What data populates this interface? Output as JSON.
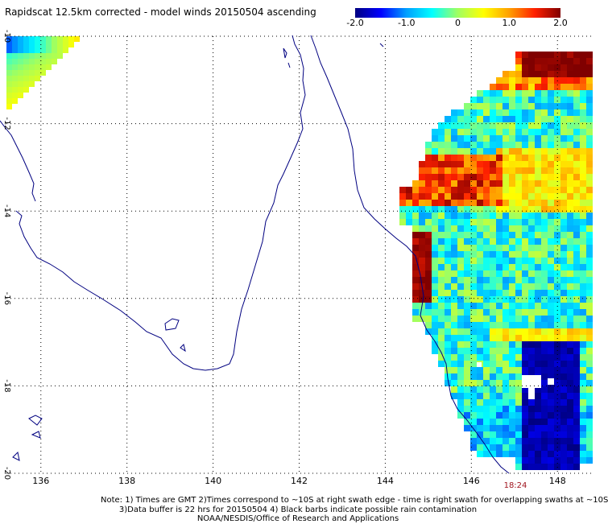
{
  "title": "Rapidscat 12.5km corrected - model winds 20150504 ascending",
  "colorbar": {
    "range": [
      -2.0,
      2.0
    ],
    "ticks": [
      "-2.0",
      "-1.0",
      "0",
      "1.0",
      "2.0"
    ],
    "colors": [
      "#000080",
      "#0000ff",
      "#00a0ff",
      "#00ffff",
      "#a0ff60",
      "#ffff00",
      "#ffa000",
      "#ff2000",
      "#800000"
    ]
  },
  "map": {
    "lon_range": [
      135.2,
      148.8
    ],
    "lat_range": [
      -20,
      -10
    ],
    "lat_ticks": [
      {
        "value": -10,
        "label": "-10"
      },
      {
        "value": -12,
        "label": "-12"
      },
      {
        "value": -14,
        "label": "-14"
      },
      {
        "value": -16,
        "label": "-16"
      },
      {
        "value": -18,
        "label": "-18"
      },
      {
        "value": -20,
        "label": "-20"
      }
    ],
    "lon_ticks": [
      {
        "value": 136,
        "label": "136"
      },
      {
        "value": 138,
        "label": "138"
      },
      {
        "value": 140,
        "label": "140"
      },
      {
        "value": 142,
        "label": "142"
      },
      {
        "value": 144,
        "label": "144"
      },
      {
        "value": 146,
        "label": "146"
      },
      {
        "value": 148,
        "label": "148"
      }
    ],
    "grid": "dotted",
    "coastline_color": "#000080",
    "time_label": "18:24"
  },
  "notes": {
    "line1": "Note: 1) Times are GMT 2)Times correspond to ~10S at right swath edge - time is right swath for overlapping swaths at ~10S",
    "line2": "3)Data buffer is 22 hrs for 20150504 4) Black barbs indicate possible rain contamination",
    "line3": "NOAA/NESDIS/Office of Research and Applications"
  }
}
